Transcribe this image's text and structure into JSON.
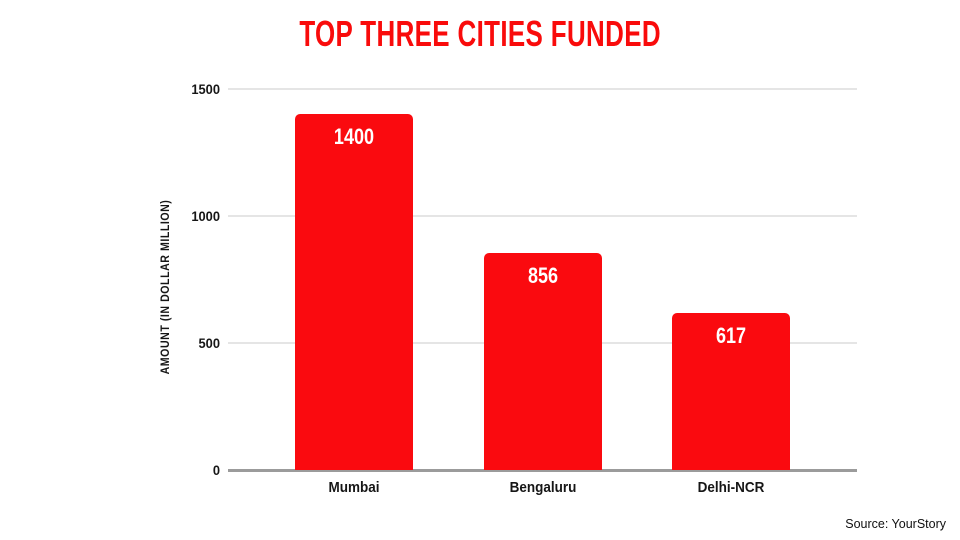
{
  "title": "TOP THREE CITIES FUNDED",
  "source": "Source: YourStory",
  "colors": {
    "title": "#F90B0B",
    "bar": "#FA0A0F",
    "value_label": "#FFFFFF",
    "gridline": "#E5E5E5",
    "axisline": "#9B9B9B",
    "text": "#161616"
  },
  "chart_data": {
    "type": "bar",
    "title": "TOP THREE CITIES FUNDED",
    "categories": [
      "Mumbai",
      "Bengaluru",
      "Delhi-NCR"
    ],
    "values": [
      1400,
      856,
      617
    ],
    "data_labels": [
      "1400",
      "856",
      "617"
    ],
    "xlabel": "",
    "ylabel": "AMOUNT (IN DOLLAR MILLION)",
    "ylim": [
      0,
      1500
    ],
    "yticks": [
      0,
      500,
      1000,
      1500
    ],
    "grid": true,
    "legend": "none",
    "bar_color": "#FA0A0F"
  }
}
